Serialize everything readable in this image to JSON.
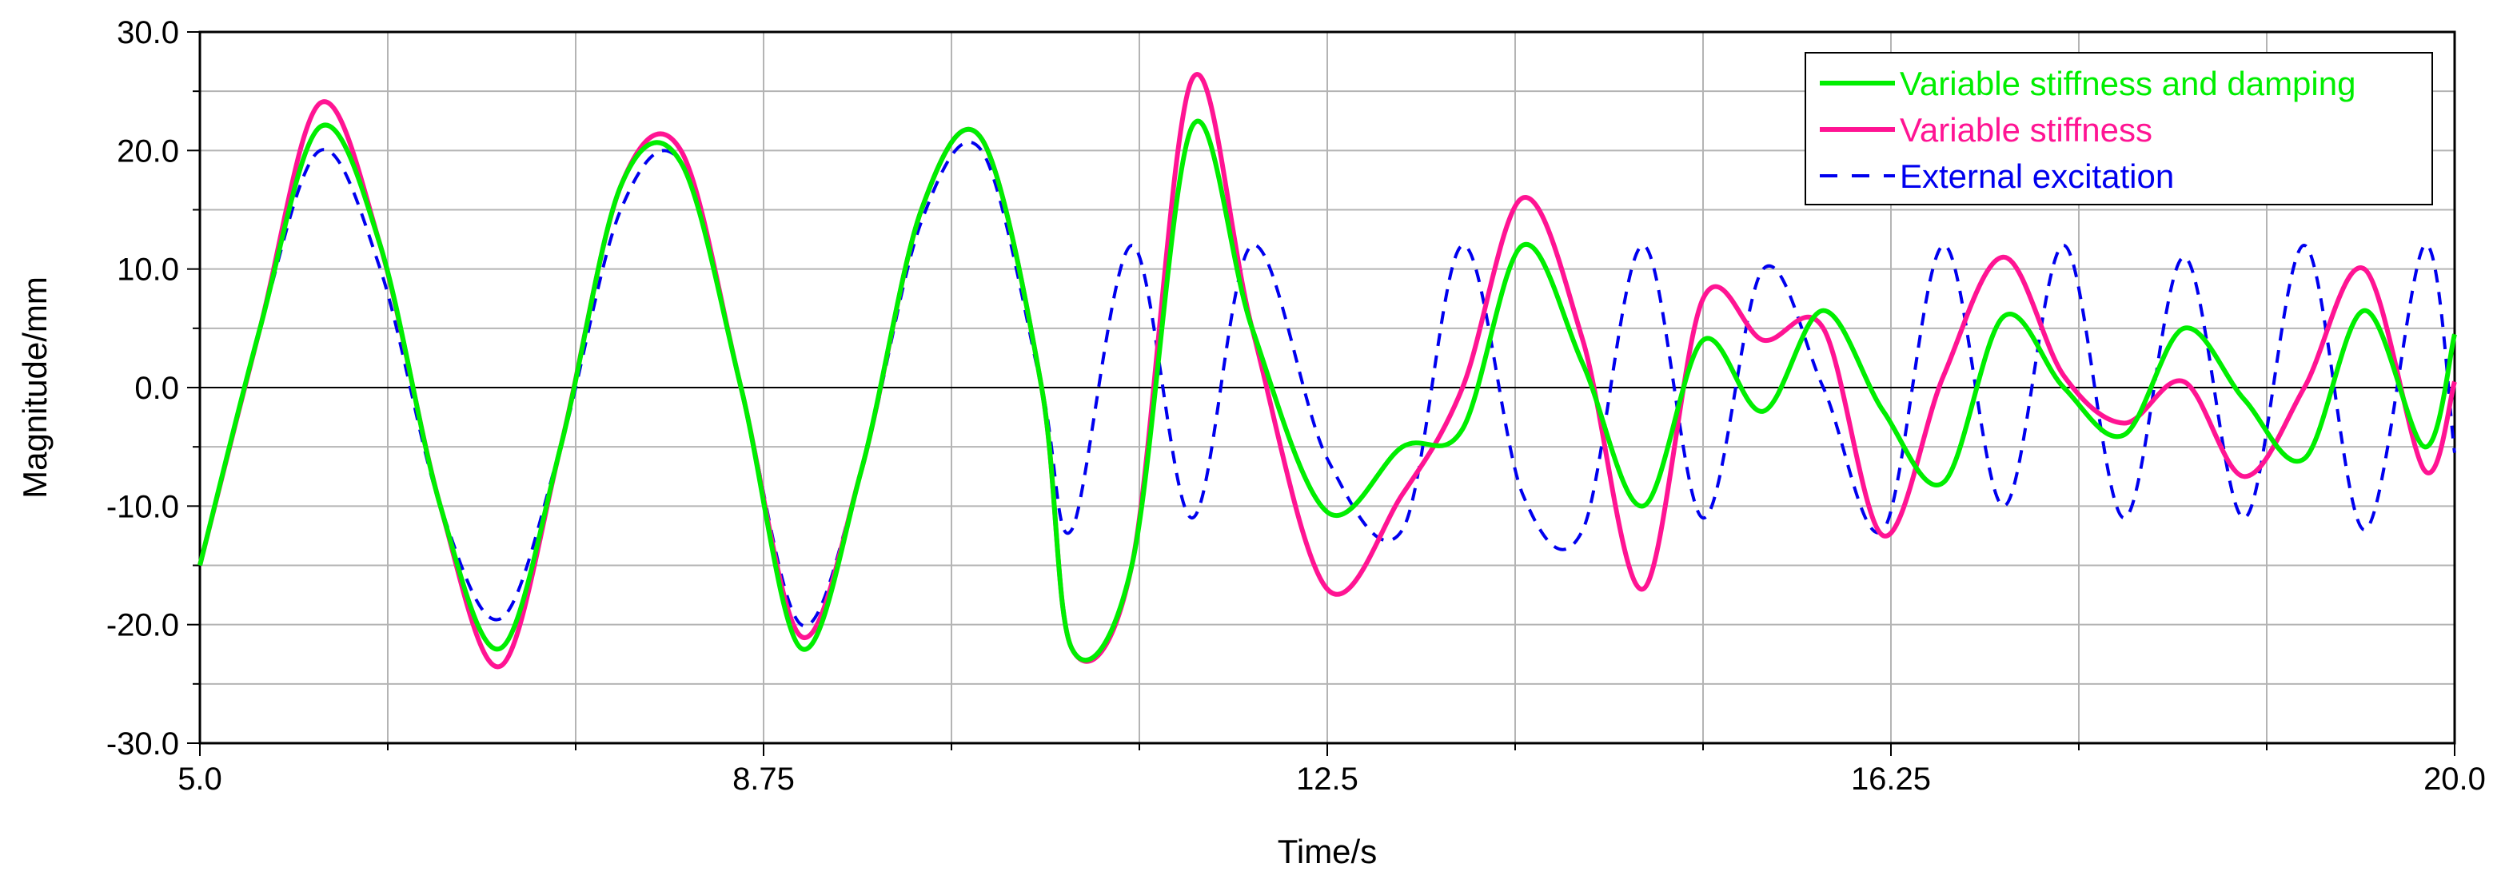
{
  "chart_data": {
    "type": "line",
    "title": "",
    "xlabel": "Time/s",
    "ylabel": "Magnitude/mm",
    "xlim": [
      5.0,
      20.0
    ],
    "ylim": [
      -30.0,
      30.0
    ],
    "x_ticks": [
      5.0,
      8.75,
      12.5,
      16.25,
      20.0
    ],
    "x_tick_labels": [
      "5.0",
      "8.75",
      "12.5",
      "16.25",
      "20.0"
    ],
    "y_ticks": [
      30.0,
      20.0,
      10.0,
      0.0,
      -10.0,
      -20.0,
      -30.0
    ],
    "y_tick_labels": [
      "30.0",
      "20.0",
      "10.0",
      "0.0",
      "-10.0",
      "-20.0",
      "-30.0"
    ],
    "grid": true,
    "legend_position": "top-right",
    "series": [
      {
        "name": "Variable stiffness and damping",
        "color": "#00ee00",
        "style": "solid",
        "x": [
          5.0,
          5.4,
          5.8,
          6.2,
          6.6,
          7.0,
          7.4,
          7.8,
          8.2,
          8.6,
          9.0,
          9.4,
          9.8,
          10.2,
          10.6,
          10.8,
          11.2,
          11.6,
          12.0,
          12.5,
          13.0,
          13.4,
          13.8,
          14.2,
          14.6,
          15.0,
          15.4,
          15.8,
          16.2,
          16.6,
          17.0,
          17.4,
          17.8,
          18.2,
          18.6,
          19.0,
          19.4,
          19.8,
          20.0
        ],
        "y": [
          -15,
          5,
          22,
          12,
          -10,
          -22,
          -5,
          17,
          19,
          0,
          -22,
          -7,
          15,
          21,
          0,
          -22,
          -15,
          22,
          5,
          -10.5,
          -5,
          -3.5,
          12,
          2,
          -10,
          4,
          -2,
          6.5,
          -2,
          -8,
          6,
          0,
          -4,
          5,
          -1,
          -6,
          6.5,
          -5,
          4.5
        ]
      },
      {
        "name": "Variable stiffness",
        "color": "#ff1493",
        "style": "solid",
        "x": [
          5.0,
          5.4,
          5.8,
          6.2,
          6.6,
          7.0,
          7.4,
          7.8,
          8.2,
          8.6,
          9.0,
          9.4,
          9.8,
          10.2,
          10.6,
          10.8,
          11.2,
          11.6,
          12.0,
          12.5,
          13.0,
          13.4,
          13.8,
          14.2,
          14.6,
          15.0,
          15.4,
          15.8,
          16.2,
          16.6,
          17.0,
          17.4,
          17.8,
          18.2,
          18.6,
          19.0,
          19.4,
          19.8,
          20.0
        ],
        "y": [
          -15,
          5,
          24,
          12,
          -10,
          -23.5,
          -5,
          17,
          20,
          0,
          -21,
          -7,
          15,
          21,
          0,
          -22,
          -15,
          26,
          5,
          -17,
          -9,
          0,
          16,
          4,
          -17,
          7.5,
          4,
          5,
          -12.5,
          1,
          11,
          1,
          -3,
          0.5,
          -7.5,
          0,
          10,
          -7,
          0.5
        ]
      },
      {
        "name": "External excitation",
        "color": "#0000ee",
        "style": "dashed",
        "x": [
          5.0,
          5.4,
          5.8,
          6.2,
          6.6,
          7.0,
          7.4,
          7.8,
          8.2,
          8.6,
          9.0,
          9.4,
          9.8,
          10.2,
          10.6,
          10.8,
          11.2,
          11.6,
          12.0,
          12.5,
          13.0,
          13.4,
          13.8,
          14.2,
          14.6,
          15.0,
          15.4,
          15.8,
          16.2,
          16.6,
          17.0,
          17.4,
          17.8,
          18.2,
          18.6,
          19.0,
          19.4,
          19.8,
          20.0
        ],
        "y": [
          -15,
          5,
          20,
          10,
          -10,
          -19.5,
          -5,
          15,
          19,
          0,
          -20,
          -7,
          14,
          20,
          0,
          -12,
          12,
          -11,
          12,
          -6,
          -12,
          12,
          -9,
          -12,
          12,
          -11,
          10,
          0,
          -12,
          12,
          -10,
          12,
          -11,
          11,
          -11,
          12,
          -12,
          12,
          -5.5
        ]
      }
    ]
  }
}
